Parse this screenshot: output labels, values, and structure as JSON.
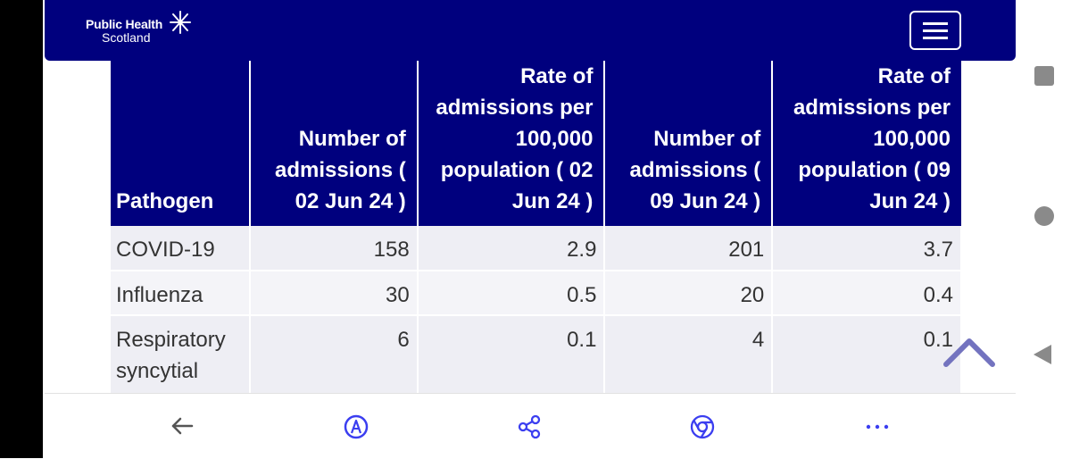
{
  "header": {
    "logo_line1": "Public Health",
    "logo_line2": "Scotland"
  },
  "table": {
    "columns": [
      "Pathogen",
      "Number of admissions ( 02 Jun 24 )",
      "Rate of admissions per 100,000 population ( 02 Jun 24 )",
      "Number of admissions ( 09 Jun 24 )",
      "Rate of admissions per 100,000 population ( 09 Jun 24 )"
    ],
    "rows": [
      [
        "COVID-19",
        "158",
        "2.9",
        "201",
        "3.7"
      ],
      [
        "Influenza",
        "30",
        "0.5",
        "20",
        "0.4"
      ],
      [
        "Respiratory syncytial virus",
        "6",
        "0.1",
        "4",
        "0.1"
      ]
    ]
  },
  "colors": {
    "brand": "#00007e",
    "accent": "#3b3ef0"
  },
  "icons": {
    "back": "arrow-left-icon",
    "reader": "reader-mode-icon",
    "share": "share-icon",
    "browser": "chrome-icon",
    "more": "more-dots-icon",
    "scroll_top": "chevron-up-icon"
  }
}
